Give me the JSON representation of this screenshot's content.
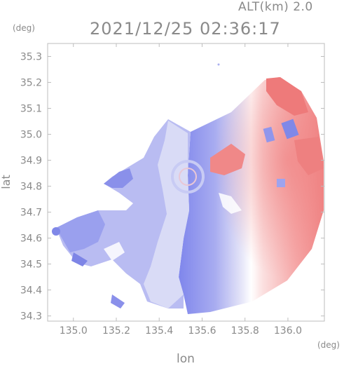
{
  "header": {
    "altitude": "ALT(km) 2.0",
    "timestamp": "2021/12/25 02:36:17"
  },
  "chart_data": {
    "type": "heatmap",
    "title": "2021/12/25 02:36:17",
    "xlabel": "lon",
    "ylabel": "lat",
    "x_unit": "(deg)",
    "y_unit": "(deg)",
    "xlim": [
      134.88,
      136.17
    ],
    "ylim": [
      34.28,
      35.35
    ],
    "x_ticks": [
      135.0,
      135.2,
      135.4,
      135.6,
      135.8,
      136.0
    ],
    "x_tick_labels": [
      "135.0",
      "135.2",
      "135.4",
      "135.6",
      "135.8",
      "136.0"
    ],
    "y_ticks": [
      34.3,
      34.4,
      34.5,
      34.6,
      34.7,
      34.8,
      34.9,
      35.0,
      35.1,
      35.2,
      35.3
    ],
    "y_tick_labels": [
      "34.3",
      "34.4",
      "34.5",
      "34.6",
      "34.7",
      "34.8",
      "34.9",
      "35.0",
      "35.1",
      "35.2",
      "35.3"
    ],
    "grid": false,
    "radar_center": {
      "lon": 135.53,
      "lat": 34.81
    },
    "colors": {
      "approaching": "#7f86ec",
      "receding": "#f08a8a",
      "neutral": "#ffffff",
      "axis": "#bdbdbd",
      "text": "#8a8a8a"
    }
  }
}
